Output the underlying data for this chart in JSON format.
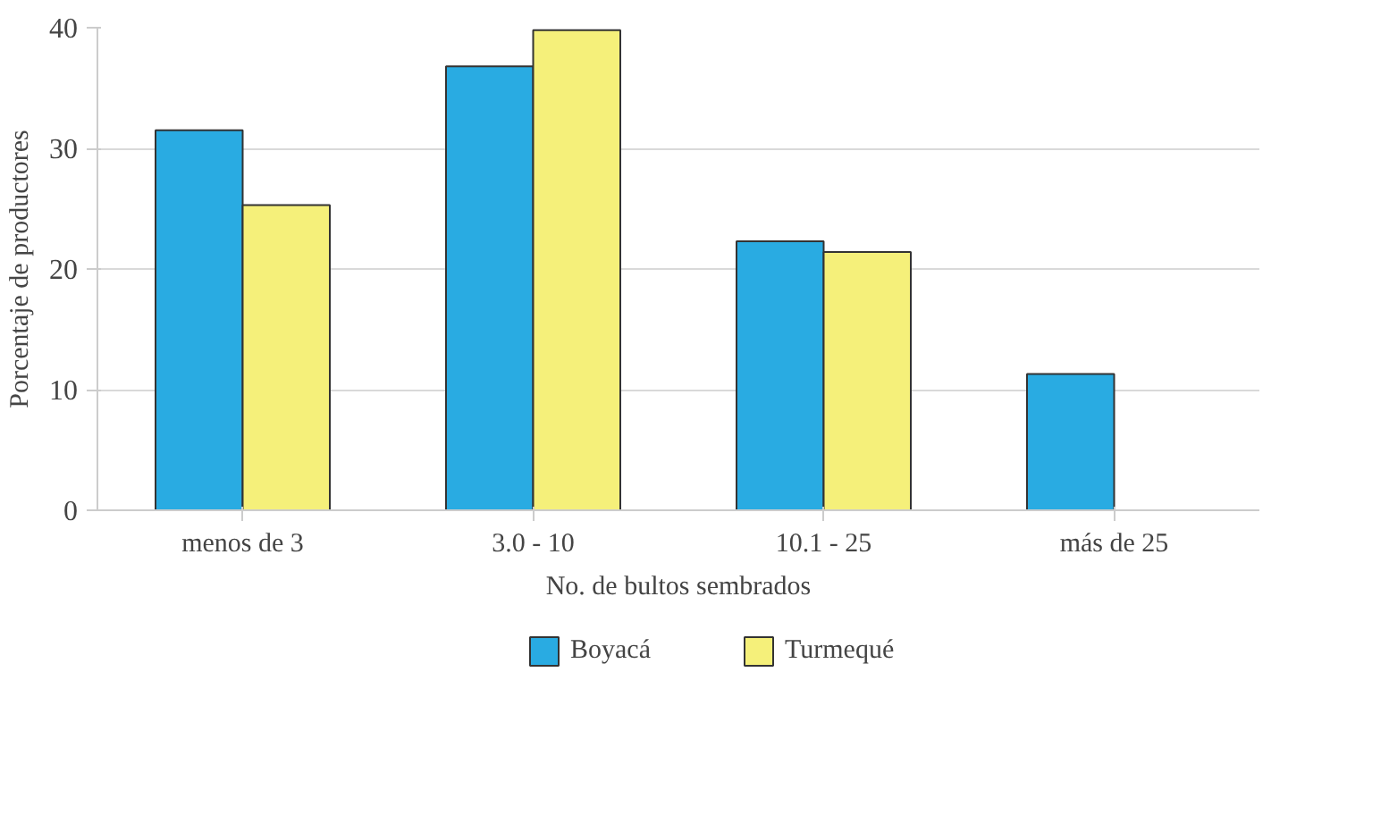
{
  "chart_data": {
    "type": "bar",
    "xlabel": "No. de bultos sembrados",
    "ylabel": "Porcentaje de productores",
    "categories": [
      "menos de 3",
      "3.0 - 10",
      "10.1 - 25",
      "más de 25"
    ],
    "series": [
      {
        "name": "Boyacá",
        "color": "#29abe2",
        "values": [
          31.5,
          36.8,
          22.3,
          11.3
        ]
      },
      {
        "name": "Turmequé",
        "color": "#f5f07a",
        "values": [
          25.3,
          39.8,
          21.4,
          null
        ]
      }
    ],
    "ylim": [
      0,
      40
    ],
    "yticks": [
      0,
      10,
      20,
      30,
      40
    ],
    "grid": "y",
    "legend": "bottom"
  }
}
